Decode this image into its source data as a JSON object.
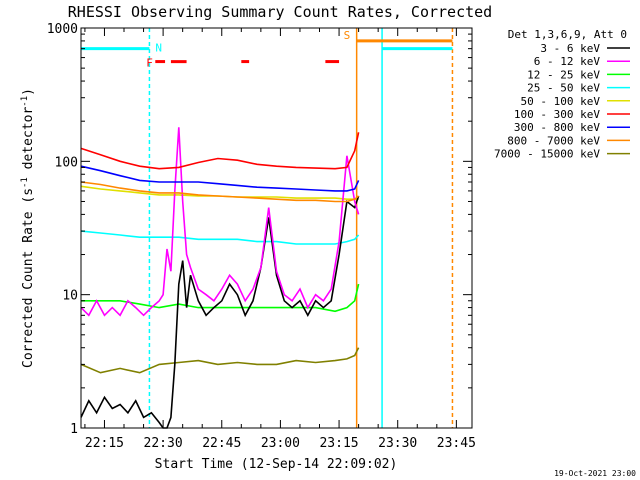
{
  "chart_data": {
    "type": "line",
    "title": "RHESSI Observing Summary Count Rates, Corrected",
    "xlabel": "Start Time (12-Sep-14 22:09:02)",
    "ylabel": "Corrected Count Rate (s⁻¹ detector⁻¹)",
    "ylabel_main": "Corrected Count Rate (s",
    "ylabel_sup1": "-1",
    "ylabel_mid": " detector",
    "ylabel_sup2": "-1",
    "ylabel_end": ")",
    "y_log": true,
    "ylim": [
      1,
      1000
    ],
    "xlim_minutes": [
      0,
      100
    ],
    "y_ticks": [
      {
        "value": 1000,
        "label": "1000"
      },
      {
        "value": 100,
        "label": "100"
      },
      {
        "value": 10,
        "label": "10"
      },
      {
        "value": 1,
        "label": "1"
      }
    ],
    "x_ticks": [
      {
        "minute": 6,
        "label": "22:15"
      },
      {
        "minute": 21,
        "label": "22:30"
      },
      {
        "minute": 36,
        "label": "22:45"
      },
      {
        "minute": 51,
        "label": "23:00"
      },
      {
        "minute": 66,
        "label": "23:15"
      },
      {
        "minute": 81,
        "label": "23:30"
      },
      {
        "minute": 96,
        "label": "23:45"
      }
    ],
    "legend_title": "Det 1,3,6,9, Att 0",
    "legend_position": "right",
    "series": [
      {
        "name": "3 - 6 keV",
        "color": "#000000",
        "x": [
          0,
          2,
          4,
          6,
          8,
          10,
          12,
          14,
          16,
          18,
          20,
          21,
          22,
          23,
          24,
          25,
          26,
          27,
          28,
          30,
          32,
          34,
          36,
          38,
          40,
          42,
          44,
          46,
          48,
          50,
          52,
          54,
          56,
          58,
          60,
          62,
          64,
          66,
          68,
          70,
          71
        ],
        "y": [
          1.2,
          1.6,
          1.3,
          1.7,
          1.4,
          1.5,
          1.3,
          1.6,
          1.2,
          1.3,
          1.1,
          1.0,
          1.0,
          1.2,
          3,
          12,
          18,
          8,
          14,
          9,
          7,
          8,
          9,
          12,
          10,
          7,
          9,
          16,
          38,
          14,
          9,
          8,
          9,
          7,
          9,
          8,
          9,
          20,
          50,
          45,
          55
        ]
      },
      {
        "name": "6 - 12 keV",
        "color": "#ff00ff",
        "x": [
          0,
          2,
          4,
          6,
          8,
          10,
          12,
          14,
          16,
          18,
          20,
          21,
          22,
          23,
          24,
          25,
          26,
          27,
          28,
          30,
          32,
          34,
          36,
          38,
          40,
          42,
          44,
          46,
          48,
          50,
          52,
          54,
          56,
          58,
          60,
          62,
          64,
          66,
          68,
          70,
          71
        ],
        "y": [
          8,
          7,
          9,
          7,
          8,
          7,
          9,
          8,
          7,
          8,
          9,
          10,
          22,
          15,
          60,
          180,
          50,
          20,
          16,
          11,
          10,
          9,
          11,
          14,
          12,
          9,
          11,
          16,
          45,
          15,
          10,
          9,
          11,
          8,
          10,
          9,
          11,
          25,
          110,
          50,
          40
        ]
      },
      {
        "name": "12 - 25 keV",
        "color": "#00ff00",
        "x": [
          0,
          5,
          10,
          15,
          20,
          25,
          30,
          35,
          40,
          45,
          50,
          55,
          60,
          65,
          68,
          70,
          71
        ],
        "y": [
          9,
          9,
          9,
          8.5,
          8,
          8.5,
          8,
          8,
          8,
          8,
          8,
          8,
          8,
          7.5,
          8,
          9,
          12
        ]
      },
      {
        "name": "25 - 50 keV",
        "color": "#00ffff",
        "x": [
          0,
          5,
          10,
          15,
          20,
          25,
          30,
          35,
          40,
          45,
          50,
          55,
          60,
          65,
          68,
          70,
          71
        ],
        "y": [
          30,
          29,
          28,
          27,
          27,
          27,
          26,
          26,
          26,
          25,
          25,
          24,
          24,
          24,
          25,
          26,
          28
        ]
      },
      {
        "name": "50 - 100 keV",
        "color": "#e0e000",
        "x": [
          0,
          5,
          10,
          15,
          20,
          25,
          30,
          35,
          40,
          45,
          50,
          55,
          60,
          65,
          68,
          70,
          71
        ],
        "y": [
          65,
          62,
          60,
          58,
          56,
          56,
          55,
          55,
          54,
          54,
          54,
          53,
          53,
          53,
          52,
          52,
          52
        ]
      },
      {
        "name": "100 - 300 keV",
        "color": "#ff0000",
        "x": [
          0,
          5,
          10,
          15,
          20,
          25,
          30,
          35,
          40,
          45,
          50,
          55,
          60,
          65,
          68,
          70,
          71
        ],
        "y": [
          125,
          112,
          100,
          92,
          88,
          90,
          98,
          105,
          102,
          95,
          92,
          90,
          89,
          88,
          90,
          120,
          165
        ]
      },
      {
        "name": "300 - 800 keV",
        "color": "#0000ff",
        "x": [
          0,
          5,
          10,
          15,
          20,
          25,
          30,
          35,
          40,
          45,
          50,
          55,
          60,
          65,
          68,
          70,
          71
        ],
        "y": [
          92,
          85,
          78,
          72,
          70,
          70,
          70,
          68,
          66,
          64,
          63,
          62,
          61,
          60,
          60,
          62,
          72
        ]
      },
      {
        "name": "800 - 7000 keV",
        "color": "#ff8800",
        "x": [
          0,
          5,
          10,
          15,
          20,
          25,
          30,
          35,
          40,
          45,
          50,
          55,
          60,
          65,
          68,
          70,
          71
        ],
        "y": [
          70,
          67,
          63,
          60,
          58,
          58,
          56,
          55,
          54,
          53,
          52,
          51,
          51,
          50,
          50,
          52,
          55
        ]
      },
      {
        "name": "7000 - 15000 keV",
        "color": "#808000",
        "x": [
          0,
          5,
          10,
          15,
          20,
          25,
          30,
          35,
          40,
          45,
          50,
          55,
          60,
          65,
          68,
          70,
          71
        ],
        "y": [
          3,
          2.6,
          2.8,
          2.6,
          3,
          3.1,
          3.2,
          3,
          3.1,
          3,
          3,
          3.2,
          3.1,
          3.2,
          3.3,
          3.5,
          4
        ]
      }
    ],
    "flags": [
      {
        "label": "N",
        "color": "#00ffff",
        "start_minute": 0,
        "end_minute": 17.5,
        "level": 700
      },
      {
        "label": "F",
        "color": "#ff0000",
        "segments": [
          [
            19,
            21.5
          ],
          [
            23,
            27
          ],
          [
            41,
            43
          ],
          [
            62.5,
            66
          ]
        ],
        "level": 560
      },
      {
        "label": "S",
        "color": "#ff8800",
        "start_minute": 70.5,
        "end_minute": 95,
        "level": 800
      },
      {
        "label": "",
        "color": "#00ffff",
        "start_minute": 77,
        "end_minute": 95,
        "level": 700
      }
    ],
    "vlines": [
      {
        "minute": 17.5,
        "color": "#00ffff",
        "style": "dashed"
      },
      {
        "minute": 70.5,
        "color": "#ff8800",
        "style": "solid"
      },
      {
        "minute": 77,
        "color": "#00ffff",
        "style": "solid"
      },
      {
        "minute": 95,
        "color": "#ff8800",
        "style": "dashed"
      }
    ],
    "timestamp": "19-Oct-2021 23:00"
  }
}
